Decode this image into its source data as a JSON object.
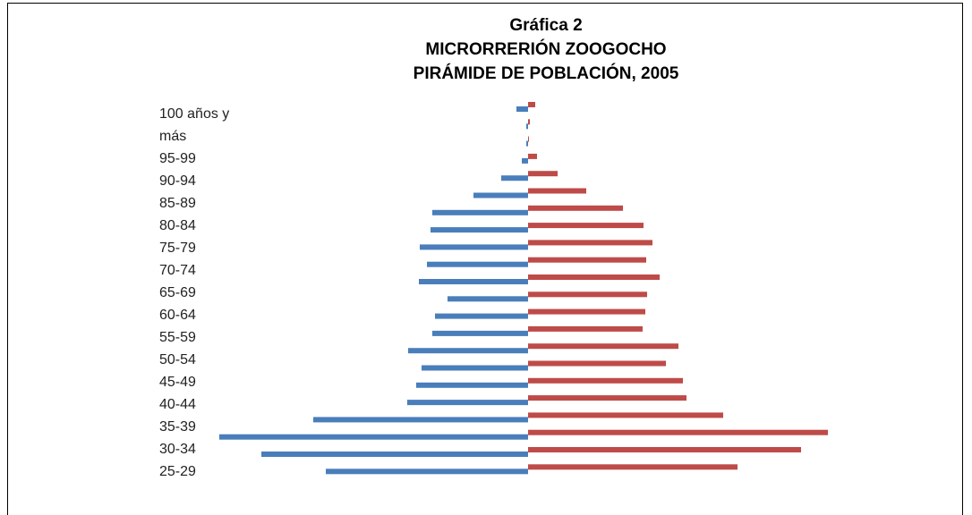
{
  "chart_data": {
    "type": "pyramid",
    "title": [
      "Gráfica 2",
      "MICRORRERIÓN ZOOGOCHO",
      "PIRÁMIDE DE POBLACIÓN, 2005"
    ],
    "categories": [
      "100 años y más",
      "95-99",
      "90-94",
      "85-89",
      "80-84",
      "75-79",
      "70-74",
      "65-69",
      "60-64",
      "55-59",
      "50-54",
      "45-49",
      "40-44",
      "35-39",
      "30-34",
      "25-29",
      null,
      null,
      null,
      null,
      null,
      null
    ],
    "series": [
      {
        "color": "#4a7ebb",
        "side": "left",
        "values": [
          13,
          2,
          2,
          7,
          30,
          61,
          107,
          109,
          121,
          113,
          122,
          90,
          104,
          107,
          134,
          119,
          125,
          135,
          240,
          345,
          298,
          226
        ]
      },
      {
        "color": "#be4b48",
        "side": "right",
        "values": [
          8,
          2,
          1,
          10,
          33,
          65,
          106,
          129,
          139,
          132,
          147,
          133,
          131,
          128,
          168,
          154,
          173,
          177,
          218,
          335,
          305,
          234
        ]
      }
    ]
  }
}
